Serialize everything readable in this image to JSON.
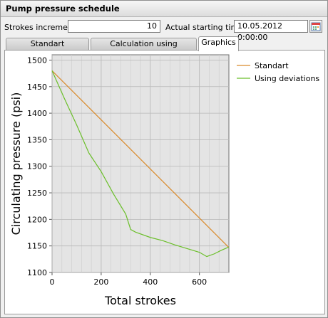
{
  "window": {
    "title": "Pump pressure schedule"
  },
  "form": {
    "strokes_label": "Strokes increment",
    "strokes_value": "10",
    "start_label": "Actual starting time",
    "start_value": "10.05.2012 0:00:00"
  },
  "tabs": [
    {
      "label": "Standart calculations",
      "active": false
    },
    {
      "label": "Calculation using deviations",
      "active": false
    },
    {
      "label": "Graphics",
      "active": true
    }
  ],
  "icons": {
    "calendar": "calendar-icon"
  },
  "chart_data": {
    "type": "line",
    "xlabel": "Total strokes",
    "ylabel": "Circulating pressure (psi)",
    "xlim": [
      0,
      720
    ],
    "ylim": [
      1100,
      1510
    ],
    "xticks": [
      "0",
      "200",
      "400",
      "600"
    ],
    "yticks": [
      "1100",
      "1150",
      "1200",
      "1250",
      "1300",
      "1350",
      "1400",
      "1450",
      "1500"
    ],
    "grid": true,
    "legend_position": "right",
    "series": [
      {
        "name": "Standart",
        "color": "#d98a2b",
        "x": [
          0,
          720
        ],
        "y": [
          1480,
          1147
        ]
      },
      {
        "name": "Using deviations",
        "color": "#6bbf2a",
        "x": [
          0,
          50,
          100,
          150,
          200,
          250,
          300,
          320,
          340,
          400,
          450,
          500,
          550,
          600,
          630,
          660,
          690,
          720
        ],
        "y": [
          1480,
          1428,
          1378,
          1325,
          1290,
          1248,
          1210,
          1181,
          1176,
          1166,
          1160,
          1152,
          1145,
          1138,
          1130,
          1135,
          1142,
          1148
        ]
      }
    ]
  }
}
